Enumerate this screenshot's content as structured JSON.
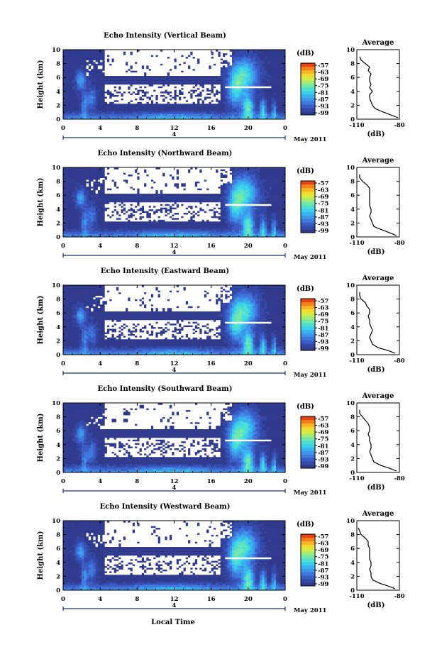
{
  "figure": {
    "date_label": "May 2011",
    "day_label": "4",
    "xlabel_bottom": "Local Time",
    "colorbar_unit": "(dB)",
    "colorbar_ticks": [
      "-57",
      "-63",
      "-69",
      "-75",
      "-81",
      "-87",
      "-93",
      "-99"
    ],
    "colormap": [
      "#303b8e",
      "#3448a8",
      "#3a5cc4",
      "#3f78dc",
      "#3d96e9",
      "#37b4f0",
      "#3dd0ea",
      "#4fe0d2",
      "#73e8a8",
      "#a4ec74",
      "#d2ec48",
      "#f3dc2e",
      "#f9b424",
      "#f4801c",
      "#e54416"
    ],
    "avg_title": "Average",
    "avg_xlabel": "(dB)"
  },
  "chart_data": [
    {
      "type": "heatmap",
      "title": "Echo Intensity (Vertical Beam)",
      "ylabel": "Height (km)",
      "xlim": [
        0,
        24
      ],
      "ylim": [
        0,
        10
      ],
      "xticks": [
        "0",
        "4",
        "8",
        "12",
        "16",
        "20",
        "0"
      ],
      "yticks": [
        "0",
        "2",
        "4",
        "6",
        "8",
        "10"
      ],
      "value_range_dB": [
        -99,
        -57
      ],
      "average_profile": {
        "xlim": [
          -110,
          -80
        ],
        "xticks": [
          "-110",
          "-80"
        ],
        "yticks": [
          "0",
          "2",
          "4",
          "6",
          "8",
          "10"
        ],
        "height_km": [
          0.2,
          0.6,
          1.0,
          1.5,
          2.0,
          2.5,
          3.0,
          3.5,
          4.0,
          4.5,
          5.0,
          5.5,
          6.0,
          6.5,
          7.0,
          7.5,
          8.0,
          8.5,
          9.0
        ],
        "dB": [
          -81,
          -86,
          -91,
          -97,
          -99,
          -100,
          -101,
          -101,
          -99,
          -101,
          -100,
          -101,
          -101,
          -100,
          -102,
          -101,
          -104,
          -107,
          -108
        ]
      }
    },
    {
      "type": "heatmap",
      "title": "Echo Intensity (Northward Beam)",
      "ylabel": "Height (km)",
      "xlim": [
        0,
        24
      ],
      "ylim": [
        0,
        10
      ],
      "xticks": [
        "0",
        "4",
        "8",
        "12",
        "16",
        "20",
        "0"
      ],
      "yticks": [
        "0",
        "2",
        "4",
        "6",
        "8",
        "10"
      ],
      "value_range_dB": [
        -99,
        -57
      ],
      "average_profile": {
        "xlim": [
          -110,
          -80
        ],
        "xticks": [
          "-110",
          "-80"
        ],
        "yticks": [
          "0",
          "2",
          "4",
          "6",
          "8",
          "10"
        ],
        "height_km": [
          0.2,
          0.6,
          1.0,
          1.5,
          2.0,
          2.5,
          3.0,
          3.5,
          4.0,
          4.5,
          5.0,
          5.5,
          6.0,
          6.5,
          7.0,
          7.5,
          8.0,
          8.5,
          9.0
        ],
        "dB": [
          -82,
          -87,
          -92,
          -98,
          -99,
          -100,
          -101,
          -100,
          -100,
          -101,
          -101,
          -101,
          -101,
          -101,
          -101,
          -103,
          -106,
          -108,
          -108
        ]
      }
    },
    {
      "type": "heatmap",
      "title": "Echo Intensity (Eastward Beam)",
      "ylabel": "Height (km)",
      "xlim": [
        0,
        24
      ],
      "ylim": [
        0,
        10
      ],
      "xticks": [
        "0",
        "4",
        "8",
        "12",
        "16",
        "20",
        "0"
      ],
      "yticks": [
        "0",
        "2",
        "4",
        "6",
        "8",
        "10"
      ],
      "value_range_dB": [
        -99,
        -57
      ],
      "average_profile": {
        "xlim": [
          -110,
          -80
        ],
        "xticks": [
          "-110",
          "-80"
        ],
        "yticks": [
          "0",
          "2",
          "4",
          "6",
          "8",
          "10"
        ],
        "height_km": [
          0.2,
          0.6,
          1.0,
          1.5,
          2.0,
          2.5,
          3.0,
          3.5,
          4.0,
          4.5,
          5.0,
          5.5,
          6.0,
          6.5,
          7.0,
          7.5,
          8.0,
          8.5,
          9.0
        ],
        "dB": [
          -83,
          -88,
          -95,
          -99,
          -100,
          -101,
          -100,
          -99,
          -100,
          -101,
          -101,
          -102,
          -101,
          -101,
          -103,
          -104,
          -107,
          -108,
          -108
        ]
      }
    },
    {
      "type": "heatmap",
      "title": "Echo Intensity (Southward Beam)",
      "ylabel": "Height (km)",
      "xlim": [
        0,
        24
      ],
      "ylim": [
        0,
        10
      ],
      "xticks": [
        "0",
        "4",
        "8",
        "12",
        "16",
        "20",
        "0"
      ],
      "yticks": [
        "0",
        "2",
        "4",
        "6",
        "8",
        "10"
      ],
      "value_range_dB": [
        -99,
        -57
      ],
      "average_profile": {
        "xlim": [
          -110,
          -80
        ],
        "xticks": [
          "-110",
          "-80"
        ],
        "yticks": [
          "0",
          "2",
          "4",
          "6",
          "8",
          "10"
        ],
        "height_km": [
          0.2,
          0.6,
          1.0,
          1.5,
          2.0,
          2.5,
          3.0,
          3.5,
          4.0,
          4.5,
          5.0,
          5.5,
          6.0,
          6.5,
          7.0,
          7.5,
          8.0,
          8.5,
          9.0
        ],
        "dB": [
          -82,
          -87,
          -93,
          -98,
          -99,
          -100,
          -101,
          -100,
          -100,
          -101,
          -101,
          -102,
          -101,
          -101,
          -102,
          -104,
          -106,
          -108,
          -108
        ]
      }
    },
    {
      "type": "heatmap",
      "title": "Echo Intensity (Westward Beam)",
      "ylabel": "Height (km)",
      "xlim": [
        0,
        24
      ],
      "ylim": [
        0,
        10
      ],
      "xticks": [
        "0",
        "4",
        "8",
        "12",
        "16",
        "20",
        "0"
      ],
      "yticks": [
        "0",
        "2",
        "4",
        "6",
        "8",
        "10"
      ],
      "value_range_dB": [
        -99,
        -57
      ],
      "average_profile": {
        "xlim": [
          -110,
          -80
        ],
        "xticks": [
          "-110",
          "-80"
        ],
        "yticks": [
          "0",
          "2",
          "4",
          "6",
          "8",
          "10"
        ],
        "height_km": [
          0.2,
          0.6,
          1.0,
          1.5,
          2.0,
          2.5,
          3.0,
          3.5,
          4.0,
          4.5,
          5.0,
          5.5,
          6.0,
          6.5,
          7.0,
          7.5,
          8.0,
          8.5,
          9.0
        ],
        "dB": [
          -83,
          -88,
          -94,
          -99,
          -100,
          -100,
          -101,
          -100,
          -100,
          -101,
          -101,
          -101,
          -101,
          -102,
          -102,
          -104,
          -107,
          -108,
          -109
        ]
      }
    }
  ]
}
